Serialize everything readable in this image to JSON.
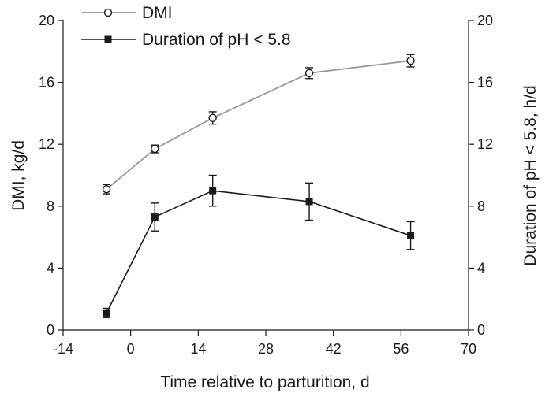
{
  "chart_data": {
    "type": "line",
    "xlabel": "Time relative to parturition, d",
    "ylabel_left": "DMI, kg/d",
    "ylabel_right": "Duration of pH < 5.8, h/d",
    "xlim": [
      -14,
      70
    ],
    "x_ticks": [
      -14,
      0,
      14,
      28,
      42,
      56,
      70
    ],
    "ylim_left": [
      0,
      20
    ],
    "ylim_right": [
      0,
      20
    ],
    "y_ticks": [
      0,
      4,
      8,
      12,
      16,
      20
    ],
    "grid": false,
    "legend_position": "top-left",
    "series": [
      {
        "name": "DMI",
        "axis": "left",
        "marker": "open-circle",
        "color": "#999999",
        "x": [
          -5,
          5,
          17,
          37,
          58
        ],
        "y": [
          9.1,
          11.7,
          13.7,
          16.6,
          17.4
        ],
        "error": [
          0.3,
          0.25,
          0.4,
          0.35,
          0.4
        ]
      },
      {
        "name": "Duration of pH < 5.8",
        "axis": "right",
        "marker": "filled-square",
        "color": "#1a1a1a",
        "x": [
          -5,
          5,
          17,
          37,
          58
        ],
        "y": [
          1.1,
          7.3,
          9.0,
          8.3,
          6.1
        ],
        "error": [
          0.3,
          0.9,
          1.0,
          1.2,
          0.9
        ]
      }
    ]
  }
}
